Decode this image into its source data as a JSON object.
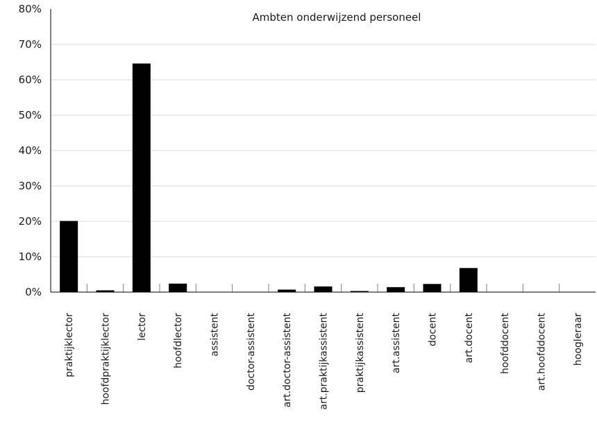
{
  "chart_data": {
    "type": "bar",
    "title": "Ambten onderwijzend personeel",
    "xlabel": "",
    "ylabel": "",
    "ylim": [
      0,
      80
    ],
    "yticks": [
      "0%",
      "10%",
      "20%",
      "30%",
      "40%",
      "50%",
      "60%",
      "70%",
      "80%"
    ],
    "grid": true,
    "categories": [
      "praktijklector",
      "hoofdpraktijklector",
      "lector",
      "hoofdlector",
      "assistent",
      "doctor-assistent",
      "art.doctor-assistent",
      "art.praktijkassistent",
      "praktijkassistent",
      "art.assistent",
      "docent",
      "art.docent",
      "hoofddocent",
      "art.hoofddocent",
      "hoogleraar"
    ],
    "values": [
      20.1,
      0.5,
      64.6,
      2.4,
      0.1,
      0.1,
      0.7,
      1.6,
      0.3,
      1.4,
      2.3,
      6.8,
      0.1,
      0.1,
      0.1
    ],
    "bar_color": "#000000",
    "grid_color": "#d9d9d9"
  }
}
